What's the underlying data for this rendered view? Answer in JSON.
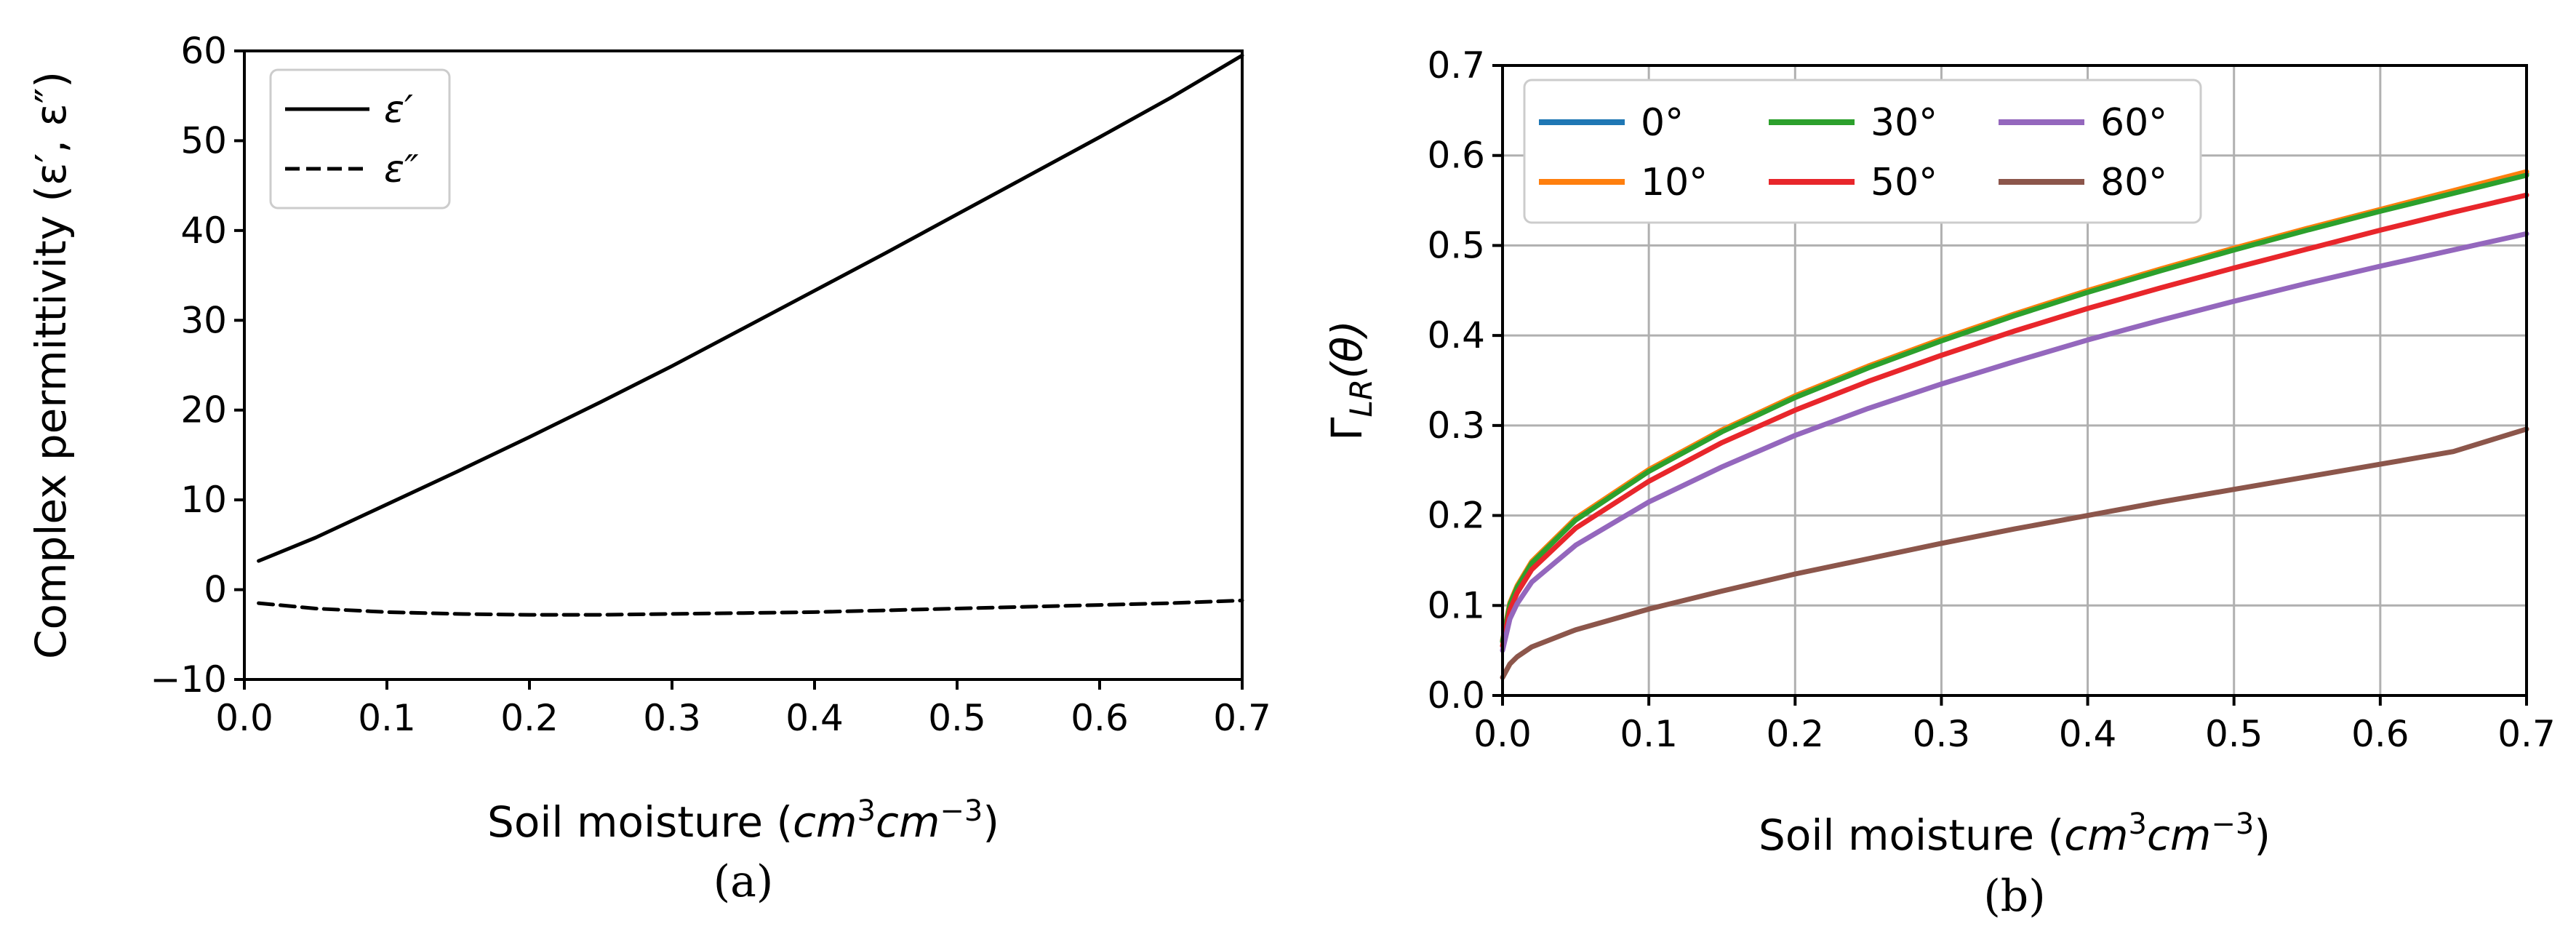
{
  "chart_data": [
    {
      "id": "a",
      "type": "line",
      "caption": "(a)",
      "xlabel_prefix": "Soil moisture (",
      "xlabel_unit_1": "cm",
      "xlabel_exp_1": "3",
      "xlabel_unit_2": "cm",
      "xlabel_exp_2": "−3",
      "xlabel_suffix": ")",
      "ylabel": "Complex permittivity (ε′, ε″)",
      "xlim": [
        0.0,
        0.7
      ],
      "ylim": [
        -10,
        60
      ],
      "xticks": [
        "0.0",
        "0.1",
        "0.2",
        "0.3",
        "0.4",
        "0.5",
        "0.6",
        "0.7"
      ],
      "yticks": [
        "−10",
        "0",
        "10",
        "20",
        "30",
        "40",
        "50",
        "60"
      ],
      "grid": false,
      "legend": "top-left",
      "series": [
        {
          "name": "ε′",
          "style": "solid",
          "color": "#000000",
          "x": [
            0.01,
            0.05,
            0.1,
            0.15,
            0.2,
            0.25,
            0.3,
            0.35,
            0.4,
            0.45,
            0.5,
            0.55,
            0.6,
            0.65,
            0.7
          ],
          "y": [
            3.2,
            5.8,
            9.5,
            13.2,
            17.0,
            20.9,
            24.9,
            29.1,
            33.3,
            37.5,
            41.8,
            46.1,
            50.4,
            54.8,
            59.5
          ]
        },
        {
          "name": "ε″",
          "style": "dashed",
          "color": "#000000",
          "x": [
            0.01,
            0.05,
            0.1,
            0.15,
            0.2,
            0.25,
            0.3,
            0.35,
            0.4,
            0.45,
            0.5,
            0.55,
            0.6,
            0.65,
            0.7
          ],
          "y": [
            -1.5,
            -2.1,
            -2.5,
            -2.7,
            -2.8,
            -2.8,
            -2.7,
            -2.6,
            -2.5,
            -2.3,
            -2.1,
            -1.9,
            -1.7,
            -1.5,
            -1.2
          ]
        }
      ]
    },
    {
      "id": "b",
      "type": "line",
      "caption": "(b)",
      "xlabel_prefix": "Soil moisture (",
      "xlabel_unit_1": "cm",
      "xlabel_exp_1": "3",
      "xlabel_unit_2": "cm",
      "xlabel_exp_2": "−3",
      "xlabel_suffix": ")",
      "ylabel_main": "Γ",
      "ylabel_sub": "LR",
      "ylabel_arg": "(θ)",
      "xlim": [
        0.0,
        0.7
      ],
      "ylim": [
        0.0,
        0.7
      ],
      "xticks": [
        "0.0",
        "0.1",
        "0.2",
        "0.3",
        "0.4",
        "0.5",
        "0.6",
        "0.7"
      ],
      "yticks": [
        "0.0",
        "0.1",
        "0.2",
        "0.3",
        "0.4",
        "0.5",
        "0.6",
        "0.7"
      ],
      "grid": true,
      "legend": "top-left",
      "series": [
        {
          "name": "0°",
          "color": "#1f77b4",
          "x": [
            0.0,
            0.005,
            0.01,
            0.02,
            0.05,
            0.1,
            0.15,
            0.2,
            0.25,
            0.3,
            0.35,
            0.4,
            0.45,
            0.5,
            0.55,
            0.6,
            0.65,
            0.7
          ],
          "y": [
            0.06,
            0.102,
            0.121,
            0.148,
            0.196,
            0.25,
            0.294,
            0.332,
            0.365,
            0.395,
            0.423,
            0.449,
            0.473,
            0.496,
            0.518,
            0.539,
            0.559,
            0.58
          ]
        },
        {
          "name": "10°",
          "color": "#ff7f0e",
          "x": [
            0.0,
            0.005,
            0.01,
            0.02,
            0.05,
            0.1,
            0.15,
            0.2,
            0.25,
            0.3,
            0.35,
            0.4,
            0.45,
            0.5,
            0.55,
            0.6,
            0.65,
            0.7
          ],
          "y": [
            0.061,
            0.103,
            0.122,
            0.149,
            0.197,
            0.251,
            0.295,
            0.333,
            0.366,
            0.396,
            0.424,
            0.45,
            0.474,
            0.497,
            0.519,
            0.54,
            0.561,
            0.582
          ]
        },
        {
          "name": "30°",
          "color": "#2ca02c",
          "x": [
            0.0,
            0.005,
            0.01,
            0.02,
            0.05,
            0.1,
            0.15,
            0.2,
            0.25,
            0.3,
            0.35,
            0.4,
            0.45,
            0.5,
            0.55,
            0.6,
            0.65,
            0.7
          ],
          "y": [
            0.06,
            0.101,
            0.12,
            0.147,
            0.195,
            0.249,
            0.293,
            0.331,
            0.364,
            0.394,
            0.422,
            0.448,
            0.472,
            0.495,
            0.517,
            0.538,
            0.558,
            0.578
          ]
        },
        {
          "name": "50°",
          "color": "#e8262b",
          "x": [
            0.0,
            0.005,
            0.01,
            0.02,
            0.05,
            0.1,
            0.15,
            0.2,
            0.25,
            0.3,
            0.35,
            0.4,
            0.45,
            0.5,
            0.55,
            0.6,
            0.65,
            0.7
          ],
          "y": [
            0.055,
            0.095,
            0.114,
            0.14,
            0.186,
            0.238,
            0.281,
            0.317,
            0.349,
            0.378,
            0.405,
            0.43,
            0.453,
            0.475,
            0.496,
            0.517,
            0.537,
            0.556
          ]
        },
        {
          "name": "60°",
          "color": "#9467bd",
          "x": [
            0.0,
            0.005,
            0.01,
            0.02,
            0.05,
            0.1,
            0.15,
            0.2,
            0.25,
            0.3,
            0.35,
            0.4,
            0.45,
            0.5,
            0.55,
            0.6,
            0.65,
            0.7
          ],
          "y": [
            0.05,
            0.085,
            0.102,
            0.126,
            0.167,
            0.215,
            0.254,
            0.289,
            0.319,
            0.346,
            0.371,
            0.395,
            0.417,
            0.438,
            0.458,
            0.477,
            0.495,
            0.513
          ]
        },
        {
          "name": "80°",
          "color": "#8c564b",
          "x": [
            0.0,
            0.005,
            0.01,
            0.02,
            0.05,
            0.1,
            0.15,
            0.2,
            0.25,
            0.3,
            0.35,
            0.4,
            0.45,
            0.5,
            0.55,
            0.6,
            0.65,
            0.7
          ],
          "y": [
            0.02,
            0.035,
            0.043,
            0.054,
            0.073,
            0.096,
            0.116,
            0.135,
            0.152,
            0.169,
            0.185,
            0.2,
            0.215,
            0.229,
            0.243,
            0.257,
            0.271,
            0.296
          ]
        }
      ]
    }
  ]
}
